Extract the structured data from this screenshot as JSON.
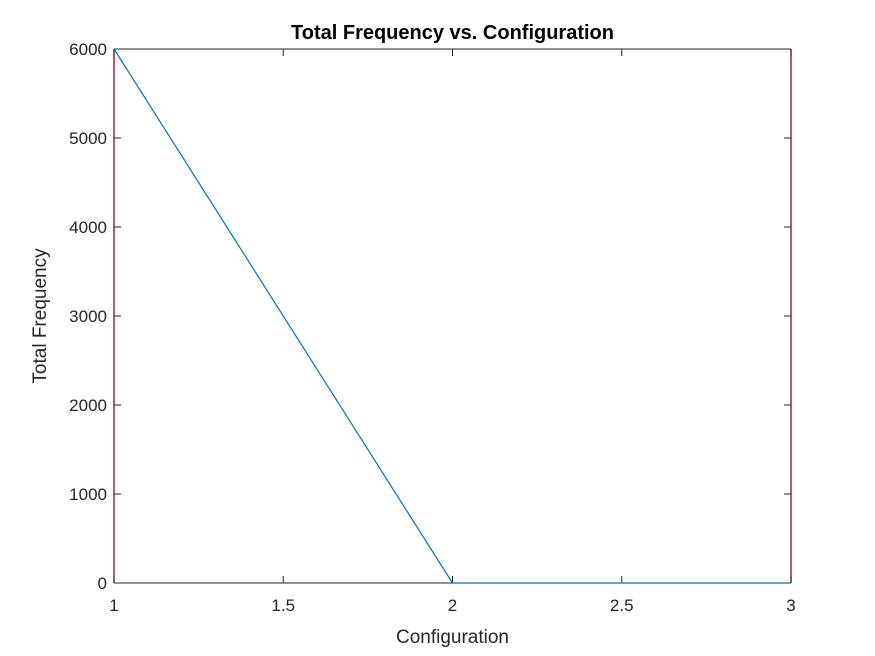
{
  "chart_data": {
    "type": "line",
    "title": "Total Frequency vs. Configuration",
    "xlabel": "Configuration",
    "ylabel": "Total Frequency",
    "xlim": [
      1,
      3
    ],
    "ylim": [
      0,
      6000
    ],
    "x_ticks": [
      1,
      1.5,
      2,
      2.5,
      3
    ],
    "x_tick_labels": [
      "1",
      "1.5",
      "2",
      "2.5",
      "3"
    ],
    "y_ticks": [
      0,
      1000,
      2000,
      3000,
      4000,
      5000,
      6000
    ],
    "y_tick_labels": [
      "0",
      "1000",
      "2000",
      "3000",
      "4000",
      "5000",
      "6000"
    ],
    "grid": false,
    "series": [
      {
        "name": "Total Frequency",
        "x": [
          1,
          2,
          3
        ],
        "values": [
          6000,
          0,
          0
        ],
        "color": "#0072BD"
      }
    ],
    "axis_color": "#262626",
    "right_axis_color": "#A2142F"
  }
}
